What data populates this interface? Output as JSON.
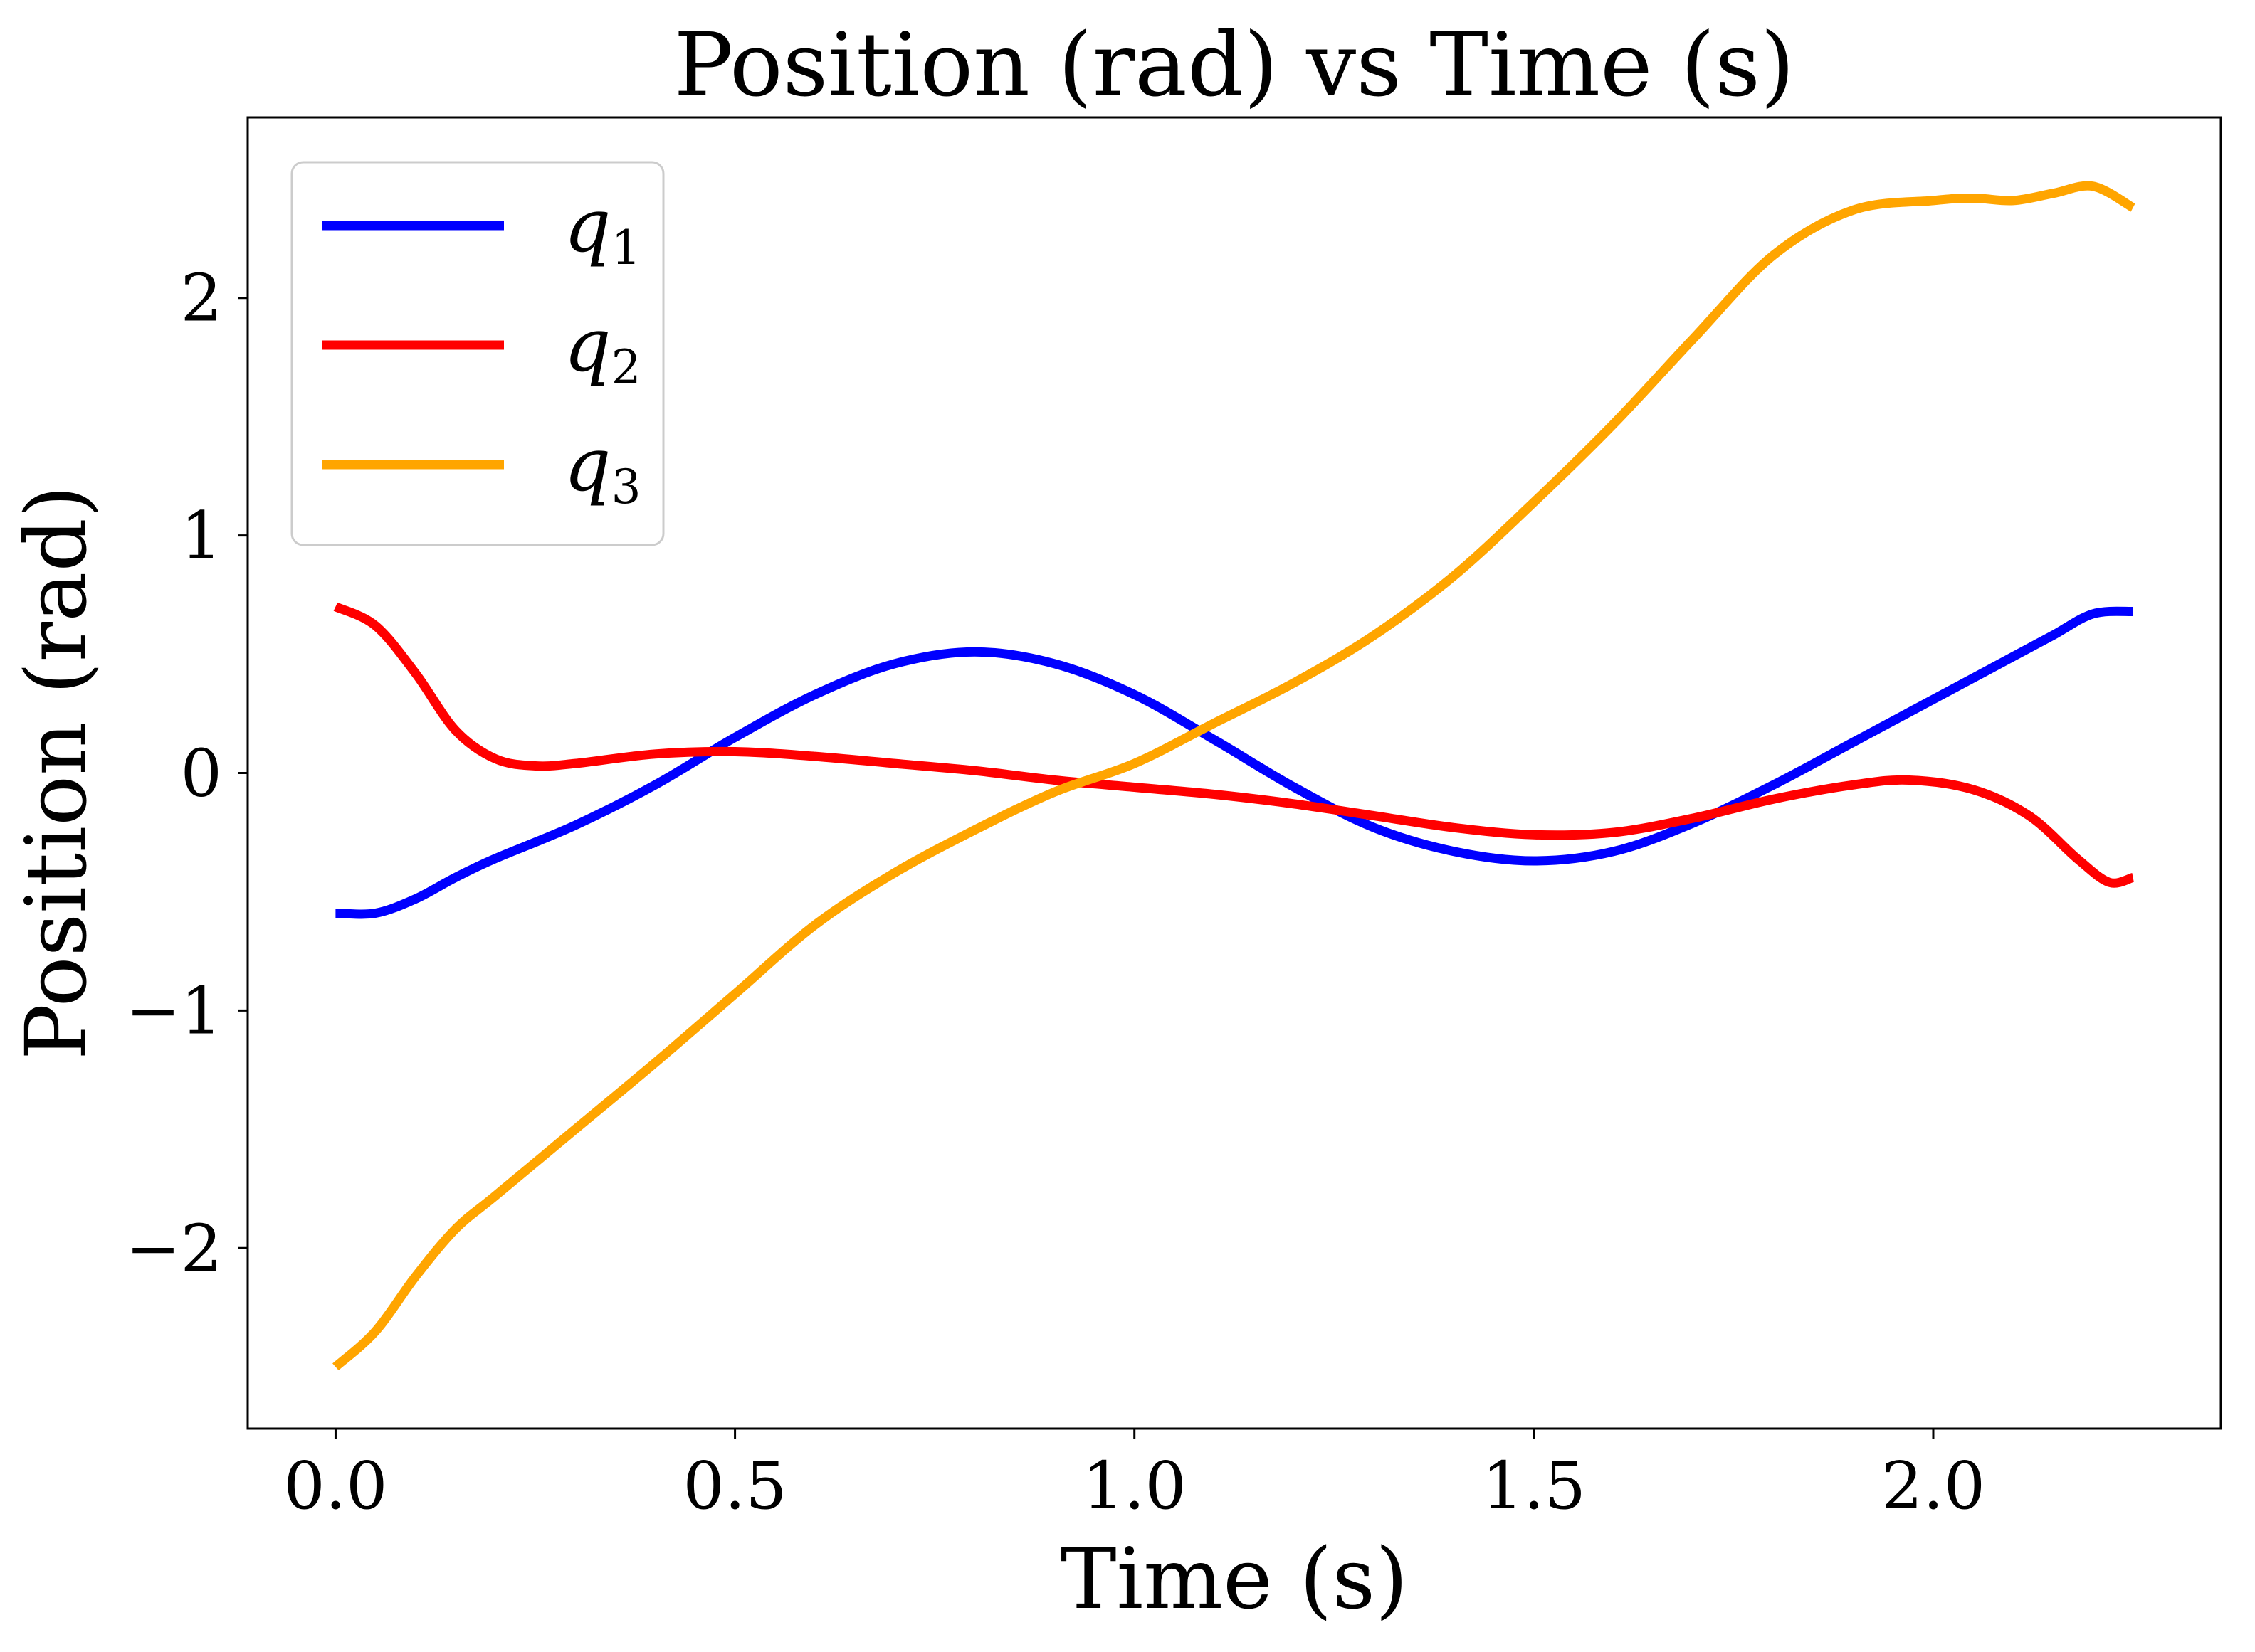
{
  "chart_data": {
    "type": "line",
    "title": "Position (rad) vs Time (s)",
    "xlabel": "Time (s)",
    "ylabel": "Position (rad)",
    "xlim": [
      -0.11,
      2.36
    ],
    "ylim": [
      -2.76,
      2.76
    ],
    "xticks": [
      0.0,
      0.5,
      1.0,
      1.5,
      2.0
    ],
    "xtick_labels": [
      "0.0",
      "0.5",
      "1.0",
      "1.5",
      "2.0"
    ],
    "yticks": [
      -2,
      -1,
      0,
      1,
      2
    ],
    "ytick_labels": [
      "−2",
      "−1",
      "0",
      "1",
      "2"
    ],
    "grid": false,
    "legend_position": "top-left",
    "series": [
      {
        "name": "q",
        "subscript": "1",
        "color": "#0000ff",
        "x": [
          0.0,
          0.05,
          0.1,
          0.15,
          0.2,
          0.3,
          0.4,
          0.5,
          0.6,
          0.7,
          0.8,
          0.9,
          1.0,
          1.1,
          1.2,
          1.3,
          1.4,
          1.5,
          1.6,
          1.7,
          1.8,
          1.9,
          2.0,
          2.1,
          2.15,
          2.2,
          2.25
        ],
        "y": [
          -0.59,
          -0.59,
          -0.53,
          -0.44,
          -0.36,
          -0.22,
          -0.05,
          0.15,
          0.33,
          0.46,
          0.51,
          0.46,
          0.33,
          0.14,
          -0.06,
          -0.23,
          -0.33,
          -0.37,
          -0.33,
          -0.21,
          -0.05,
          0.13,
          0.31,
          0.49,
          0.58,
          0.67,
          0.68
        ]
      },
      {
        "name": "q",
        "subscript": "2",
        "color": "#ff0000",
        "x": [
          0.0,
          0.05,
          0.1,
          0.15,
          0.2,
          0.25,
          0.3,
          0.4,
          0.5,
          0.6,
          0.7,
          0.8,
          0.9,
          1.0,
          1.1,
          1.2,
          1.3,
          1.4,
          1.5,
          1.6,
          1.7,
          1.8,
          1.9,
          1.97,
          2.05,
          2.12,
          2.18,
          2.22,
          2.25
        ],
        "y": [
          0.7,
          0.62,
          0.42,
          0.18,
          0.06,
          0.03,
          0.04,
          0.08,
          0.09,
          0.07,
          0.04,
          0.01,
          -0.03,
          -0.06,
          -0.09,
          -0.13,
          -0.18,
          -0.23,
          -0.26,
          -0.25,
          -0.19,
          -0.11,
          -0.05,
          -0.03,
          -0.07,
          -0.18,
          -0.36,
          -0.46,
          -0.44
        ]
      },
      {
        "name": "q",
        "subscript": "3",
        "color": "#ffa500",
        "x": [
          0.0,
          0.05,
          0.1,
          0.15,
          0.2,
          0.3,
          0.4,
          0.5,
          0.6,
          0.7,
          0.8,
          0.9,
          1.0,
          1.1,
          1.2,
          1.3,
          1.4,
          1.5,
          1.6,
          1.7,
          1.8,
          1.9,
          2.0,
          2.05,
          2.1,
          2.15,
          2.2,
          2.25
        ],
        "y": [
          -2.5,
          -2.35,
          -2.12,
          -1.92,
          -1.78,
          -1.5,
          -1.22,
          -0.93,
          -0.64,
          -0.42,
          -0.24,
          -0.08,
          0.04,
          0.21,
          0.38,
          0.58,
          0.83,
          1.14,
          1.47,
          1.83,
          2.18,
          2.37,
          2.41,
          2.42,
          2.41,
          2.44,
          2.47,
          2.38
        ]
      }
    ]
  }
}
